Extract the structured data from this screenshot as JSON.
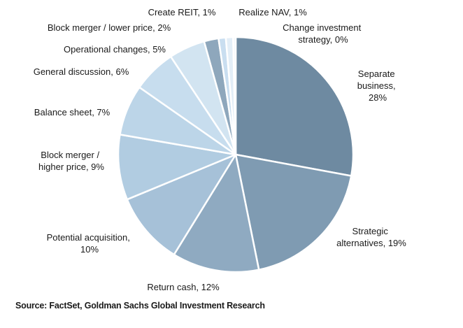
{
  "chart_data": {
    "type": "pie",
    "title": "",
    "slices": [
      {
        "label": "Separate business, 28%",
        "value": 28,
        "color": "#6e8aa1"
      },
      {
        "label": "Strategic alternatives, 19%",
        "value": 19,
        "color": "#7f9bb2"
      },
      {
        "label": "Return cash, 12%",
        "value": 12,
        "color": "#8faac1"
      },
      {
        "label": "Potential acquisition, 10%",
        "value": 10,
        "color": "#a6c1d8"
      },
      {
        "label": "Block merger / higher price, 9%",
        "value": 9,
        "color": "#b1cce1"
      },
      {
        "label": "Balance sheet, 7%",
        "value": 7,
        "color": "#bcd5e8"
      },
      {
        "label": "General discussion, 6%",
        "value": 6,
        "color": "#c7ddee"
      },
      {
        "label": "Operational changes, 5%",
        "value": 5,
        "color": "#d2e4f1"
      },
      {
        "label": "Block merger / lower price, 2%",
        "value": 2,
        "color": "#8ea7bc"
      },
      {
        "label": "Create REIT, 1%",
        "value": 1,
        "color": "#c9def0"
      },
      {
        "label": "Realize NAV, 1%",
        "value": 1,
        "color": "#e3eef7"
      },
      {
        "label": "Change investment strategy, 0%",
        "value": 0,
        "color": "#f0f5fa"
      }
    ]
  },
  "label_lines": {
    "separate_business": [
      "Separate",
      "business,",
      "28%"
    ],
    "strategic_alternatives": [
      "Strategic",
      "alternatives, 19%"
    ],
    "return_cash": [
      "Return cash, 12%"
    ],
    "potential_acquisition": [
      "Potential acquisition,",
      "10%"
    ],
    "block_merger_higher": [
      "Block merger /",
      "higher price, 9%"
    ],
    "balance_sheet": [
      "Balance sheet, 7%"
    ],
    "general_discussion": [
      "General discussion, 6%"
    ],
    "operational_changes": [
      "Operational changes, 5%"
    ],
    "block_merger_lower": [
      "Block merger / lower price, 2%"
    ],
    "create_reit": [
      "Create REIT, 1%"
    ],
    "realize_nav": [
      "Realize NAV, 1%"
    ],
    "change_investment": [
      "Change investment",
      "strategy, 0%"
    ]
  },
  "source": "Source: FactSet, Goldman Sachs Global Investment Research"
}
